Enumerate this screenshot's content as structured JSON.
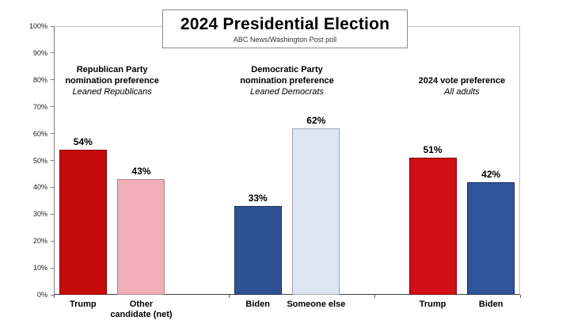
{
  "title_box": {
    "title": "2024 Presidential Election",
    "subtitle": "ABC News/Washington Post poll"
  },
  "chart_data": {
    "type": "bar",
    "title": "2024 Presidential Election",
    "subtitle": "ABC News/Washington Post poll",
    "xlabel": "",
    "ylabel": "",
    "ylim": [
      0,
      100
    ],
    "grid": false,
    "legend": "none",
    "ytick_labels": [
      "100%",
      "90%",
      "80%",
      "70%",
      "60%",
      "50%",
      "40%",
      "30%",
      "20%",
      "10%",
      "0%"
    ],
    "groups": [
      {
        "heading": "Republican Party\nnomination preference",
        "subheading": "Leaned Republicans",
        "bars": [
          {
            "label": "Trump",
            "value": 54,
            "display": "54%",
            "fill": "#c40a0a",
            "border": "#7f0404"
          },
          {
            "label": "Other\ncandidate (net)",
            "value": 43,
            "display": "43%",
            "fill": "#f0aeb8",
            "border": "#a9868c"
          }
        ]
      },
      {
        "heading": "Democratic Party\nnomination preference",
        "subheading": "Leaned Democrats",
        "bars": [
          {
            "label": "Biden",
            "value": 33,
            "display": "33%",
            "fill": "#2e5395",
            "border": "#1a2f55"
          },
          {
            "label": "Someone else",
            "value": 62,
            "display": "62%",
            "fill": "#dde4f2",
            "border": "#9aa5b5"
          }
        ]
      },
      {
        "heading": "2024 vote preference",
        "subheading": "All adults",
        "bars": [
          {
            "label": "Trump",
            "value": 51,
            "display": "51%",
            "fill": "#d20f14",
            "border": "#7f0404"
          },
          {
            "label": "Biden",
            "value": 42,
            "display": "42%",
            "fill": "#30559a",
            "border": "#1a2f55"
          }
        ]
      }
    ]
  }
}
